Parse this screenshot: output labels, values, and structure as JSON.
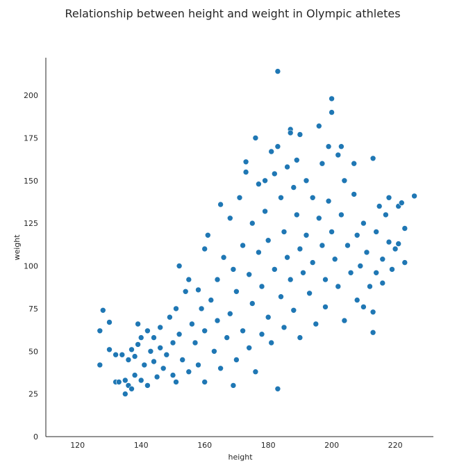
{
  "chart_data": {
    "type": "scatter",
    "title": "Relationship between height and weight in Olympic athletes",
    "xlabel": "height",
    "ylabel": "weight",
    "xlim": [
      110,
      232
    ],
    "ylim": [
      0,
      222
    ],
    "xticks": [
      120,
      140,
      160,
      180,
      200,
      220
    ],
    "yticks": [
      0,
      25,
      50,
      75,
      100,
      125,
      150,
      175,
      200
    ],
    "grid": false,
    "legend": "none",
    "color": "#1f77b4",
    "series": [
      {
        "name": "",
        "points": [
          [
            127,
            42
          ],
          [
            127,
            62
          ],
          [
            128,
            74
          ],
          [
            130,
            67
          ],
          [
            130,
            51
          ],
          [
            132,
            48
          ],
          [
            132,
            32
          ],
          [
            133,
            32
          ],
          [
            134,
            48
          ],
          [
            135,
            25
          ],
          [
            135,
            33
          ],
          [
            136,
            30
          ],
          [
            136,
            45
          ],
          [
            137,
            51
          ],
          [
            137,
            28
          ],
          [
            138,
            47
          ],
          [
            138,
            36
          ],
          [
            139,
            54
          ],
          [
            139,
            66
          ],
          [
            140,
            33
          ],
          [
            140,
            58
          ],
          [
            141,
            42
          ],
          [
            142,
            62
          ],
          [
            142,
            30
          ],
          [
            143,
            50
          ],
          [
            144,
            44
          ],
          [
            144,
            58
          ],
          [
            145,
            35
          ],
          [
            146,
            52
          ],
          [
            146,
            64
          ],
          [
            147,
            40
          ],
          [
            148,
            48
          ],
          [
            149,
            70
          ],
          [
            150,
            55
          ],
          [
            150,
            36
          ],
          [
            151,
            32
          ],
          [
            151,
            75
          ],
          [
            152,
            100
          ],
          [
            152,
            60
          ],
          [
            153,
            45
          ],
          [
            154,
            85
          ],
          [
            155,
            92
          ],
          [
            155,
            38
          ],
          [
            156,
            66
          ],
          [
            157,
            55
          ],
          [
            158,
            86
          ],
          [
            158,
            42
          ],
          [
            159,
            75
          ],
          [
            160,
            110
          ],
          [
            160,
            32
          ],
          [
            160,
            62
          ],
          [
            161,
            118
          ],
          [
            162,
            80
          ],
          [
            163,
            50
          ],
          [
            164,
            92
          ],
          [
            164,
            68
          ],
          [
            165,
            136
          ],
          [
            165,
            40
          ],
          [
            166,
            105
          ],
          [
            167,
            58
          ],
          [
            168,
            128
          ],
          [
            168,
            72
          ],
          [
            169,
            30
          ],
          [
            169,
            98
          ],
          [
            170,
            85
          ],
          [
            170,
            45
          ],
          [
            171,
            140
          ],
          [
            172,
            112
          ],
          [
            172,
            62
          ],
          [
            173,
            155
          ],
          [
            173,
            161
          ],
          [
            174,
            95
          ],
          [
            174,
            52
          ],
          [
            175,
            125
          ],
          [
            175,
            78
          ],
          [
            176,
            175
          ],
          [
            176,
            38
          ],
          [
            177,
            148
          ],
          [
            177,
            108
          ],
          [
            178,
            88
          ],
          [
            178,
            60
          ],
          [
            179,
            150
          ],
          [
            179,
            132
          ],
          [
            180,
            70
          ],
          [
            180,
            115
          ],
          [
            181,
            167
          ],
          [
            181,
            55
          ],
          [
            182,
            154
          ],
          [
            182,
            98
          ],
          [
            183,
            214
          ],
          [
            183,
            28
          ],
          [
            183,
            170
          ],
          [
            184,
            140
          ],
          [
            184,
            82
          ],
          [
            185,
            120
          ],
          [
            185,
            64
          ],
          [
            186,
            158
          ],
          [
            186,
            105
          ],
          [
            187,
            180
          ],
          [
            187,
            178
          ],
          [
            187,
            92
          ],
          [
            188,
            146
          ],
          [
            188,
            74
          ],
          [
            189,
            162
          ],
          [
            189,
            130
          ],
          [
            190,
            177
          ],
          [
            190,
            110
          ],
          [
            190,
            58
          ],
          [
            191,
            96
          ],
          [
            192,
            150
          ],
          [
            192,
            118
          ],
          [
            193,
            84
          ],
          [
            194,
            140
          ],
          [
            194,
            102
          ],
          [
            195,
            66
          ],
          [
            196,
            182
          ],
          [
            196,
            128
          ],
          [
            197,
            112
          ],
          [
            197,
            160
          ],
          [
            198,
            92
          ],
          [
            198,
            76
          ],
          [
            199,
            170
          ],
          [
            199,
            138
          ],
          [
            200,
            198
          ],
          [
            200,
            190
          ],
          [
            200,
            120
          ],
          [
            201,
            104
          ],
          [
            202,
            165
          ],
          [
            202,
            88
          ],
          [
            203,
            170
          ],
          [
            203,
            130
          ],
          [
            204,
            150
          ],
          [
            204,
            68
          ],
          [
            205,
            112
          ],
          [
            206,
            96
          ],
          [
            207,
            142
          ],
          [
            207,
            160
          ],
          [
            208,
            118
          ],
          [
            208,
            80
          ],
          [
            209,
            100
          ],
          [
            210,
            125
          ],
          [
            210,
            76
          ],
          [
            211,
            108
          ],
          [
            212,
            88
          ],
          [
            213,
            163
          ],
          [
            213,
            73
          ],
          [
            213,
            61
          ],
          [
            214,
            120
          ],
          [
            214,
            96
          ],
          [
            215,
            135
          ],
          [
            216,
            104
          ],
          [
            216,
            90
          ],
          [
            217,
            130
          ],
          [
            218,
            140
          ],
          [
            218,
            114
          ],
          [
            219,
            98
          ],
          [
            220,
            110
          ],
          [
            221,
            135
          ],
          [
            221,
            113
          ],
          [
            222,
            137
          ],
          [
            223,
            102
          ],
          [
            223,
            122
          ],
          [
            226,
            141
          ]
        ]
      }
    ]
  }
}
